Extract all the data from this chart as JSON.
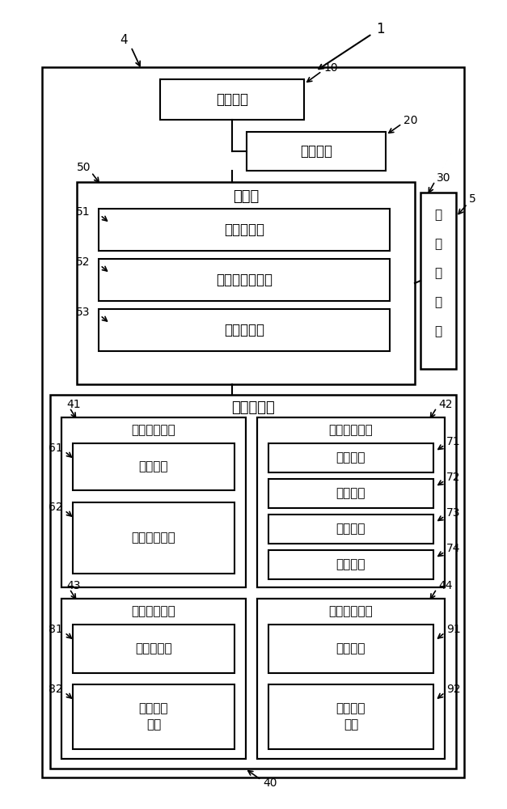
{
  "fig_width": 6.27,
  "fig_height": 10.0,
  "bg_color": "#ffffff",
  "labels": {
    "display": "显示装置",
    "input": "输入装置",
    "control": "控制部",
    "dist_calc": "距离计算部",
    "ctrl_seq": "控制顺序决定部",
    "ctrl_exec": "控制执行部",
    "comm_mgr_chars": [
      "通",
      "信",
      "管",
      "理",
      "部"
    ],
    "data_mgr": "数据管理部",
    "ac_data": "空调设备数据",
    "conn_info": "连接信息",
    "op_state": "运转状态数据",
    "energy_data": "节能设定数据",
    "section_info": "区段信息",
    "ctrl_level": "控制等级",
    "ctrl_time": "控制时间",
    "ctrl_content": "控制内容",
    "pos_data": "设置位置数据",
    "floor_plan": "平面图信息",
    "pos_info_line1": "设置位置",
    "pos_info_line2": "信息",
    "meas_data": "测量设备数据",
    "meas_conn": "连接信息",
    "meas_state_line1": "测量状态",
    "meas_state_line2": "数据"
  },
  "numbers": {
    "n1": "1",
    "n4": "4",
    "n5": "5",
    "n10": "10",
    "n20": "20",
    "n30": "30",
    "n40": "40",
    "n41": "41",
    "n42": "42",
    "n43": "43",
    "n44": "44",
    "n50": "50",
    "n51": "51",
    "n52": "52",
    "n53": "53",
    "n61": "61",
    "n62": "62",
    "n71": "71",
    "n72": "72",
    "n73": "73",
    "n74": "74",
    "n81": "81",
    "n82": "82",
    "n91": "91",
    "n92": "92"
  }
}
